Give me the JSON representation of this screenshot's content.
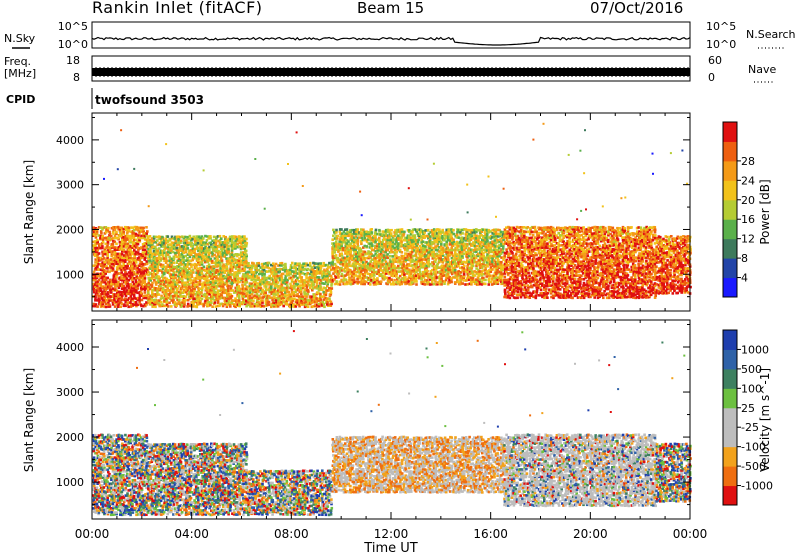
{
  "header": {
    "station": "Rankin Inlet (fitACF)",
    "beam": "Beam 15",
    "date": "07/Oct/2016"
  },
  "top_panels": {
    "nsky_label": "N.Sky",
    "nsky_ticks": [
      "10^5",
      "10^0"
    ],
    "nsearch_label": "N.Search",
    "nsearch_ticks": [
      "10^5",
      "10^0"
    ],
    "freq_label_1": "Freq.",
    "freq_label_2": "[MHz]",
    "freq_ticks": [
      "18",
      "8"
    ],
    "nave_label": "Nave",
    "nave_ticks": [
      "60",
      "0"
    ],
    "cpid_label": "CPID",
    "cpid_value": "twofsound 3503"
  },
  "chart_data": [
    {
      "type": "heatmap",
      "title": "",
      "xlabel": "Time UT",
      "ylabel": "Slant Range [km]",
      "x_ticks": [
        "00:00",
        "04:00",
        "08:00",
        "12:00",
        "16:00",
        "20:00",
        "00:00"
      ],
      "xlim_hours": [
        0,
        24
      ],
      "y_ticks": [
        1000,
        2000,
        3000,
        4000
      ],
      "ylim": [
        180,
        4600
      ],
      "colorbar": {
        "label": "Power [dB]",
        "ticks": [
          "4",
          "8",
          "12",
          "16",
          "20",
          "24",
          "28"
        ],
        "range": [
          0,
          30
        ],
        "colors": [
          "#1a1aff",
          "#2244a8",
          "#3d7a5c",
          "#5ab04a",
          "#b5cc33",
          "#f2c21a",
          "#f49a17",
          "#ee5f10",
          "#e01010"
        ]
      },
      "echo_regions": [
        {
          "t": [
            0.0,
            2.2
          ],
          "range": [
            300,
            2100
          ],
          "level": "high"
        },
        {
          "t": [
            2.2,
            6.2
          ],
          "range": [
            300,
            1900
          ],
          "level": "mid"
        },
        {
          "t": [
            6.2,
            9.6
          ],
          "range": [
            300,
            1300
          ],
          "level": "mid"
        },
        {
          "t": [
            9.6,
            16.5
          ],
          "range": [
            800,
            2050
          ],
          "level": "mid"
        },
        {
          "t": [
            16.5,
            22.6
          ],
          "range": [
            500,
            2100
          ],
          "level": "high"
        },
        {
          "t": [
            22.6,
            24.0
          ],
          "range": [
            600,
            1900
          ],
          "level": "high"
        }
      ]
    },
    {
      "type": "heatmap",
      "title": "",
      "xlabel": "Time UT",
      "ylabel": "Slant Range [km]",
      "x_ticks": [
        "00:00",
        "04:00",
        "08:00",
        "12:00",
        "16:00",
        "20:00",
        "00:00"
      ],
      "xlim_hours": [
        0,
        24
      ],
      "y_ticks": [
        1000,
        2000,
        3000,
        4000
      ],
      "ylim": [
        180,
        4600
      ],
      "colorbar": {
        "label": "Velocity [m s^-1]",
        "ticks": [
          "1000",
          "500",
          "100",
          "25",
          "-25",
          "-100",
          "-500",
          "-1000"
        ],
        "colors": [
          "#1f3fae",
          "#2f62a8",
          "#3d8060",
          "#6cc040",
          "#bdbdbd",
          "#bdbdbd",
          "#f2a21c",
          "#ef6e10",
          "#e01010"
        ]
      },
      "echo_regions": [
        {
          "t": [
            0.0,
            2.2
          ],
          "range": [
            300,
            2100
          ],
          "level": "mixed"
        },
        {
          "t": [
            2.2,
            6.2
          ],
          "range": [
            300,
            1900
          ],
          "level": "mixed"
        },
        {
          "t": [
            6.2,
            9.6
          ],
          "range": [
            300,
            1300
          ],
          "level": "mixed"
        },
        {
          "t": [
            9.6,
            16.5
          ],
          "range": [
            800,
            2050
          ],
          "level": "negative"
        },
        {
          "t": [
            16.5,
            22.6
          ],
          "range": [
            500,
            2100
          ],
          "level": "near-zero"
        },
        {
          "t": [
            22.6,
            24.0
          ],
          "range": [
            600,
            1900
          ],
          "level": "mixed"
        }
      ]
    }
  ]
}
